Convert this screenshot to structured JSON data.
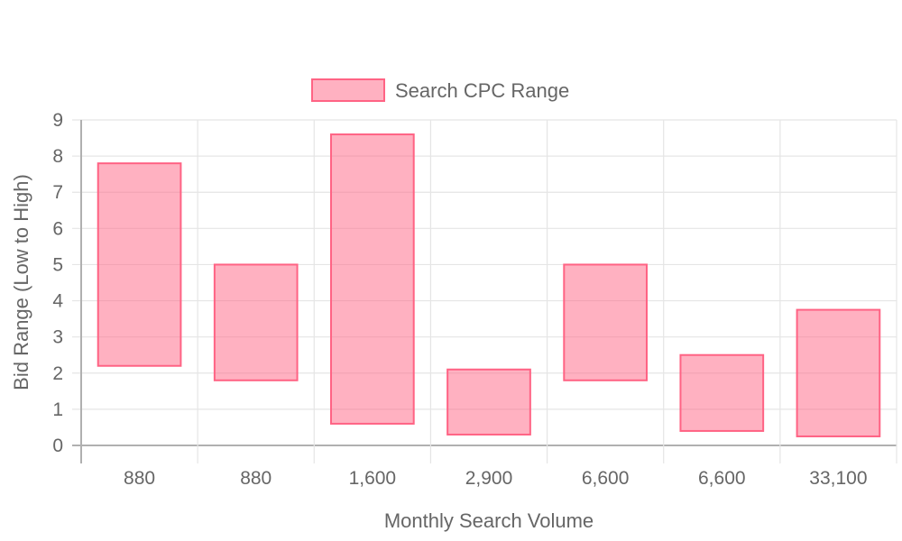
{
  "chart_data": {
    "type": "bar",
    "subtype": "floating-range",
    "categories": [
      "880",
      "880",
      "1,600",
      "2,900",
      "6,600",
      "6,600",
      "33,100"
    ],
    "series": [
      {
        "name": "Search CPC Range",
        "ranges": [
          [
            2.2,
            7.8
          ],
          [
            1.8,
            5.0
          ],
          [
            0.6,
            8.6
          ],
          [
            0.3,
            2.1
          ],
          [
            1.8,
            5.0
          ],
          [
            0.4,
            2.5
          ],
          [
            0.25,
            3.75
          ]
        ]
      }
    ],
    "xlabel": "Monthly Search Volume",
    "ylabel": "Bid Range (Low to High)",
    "ylim": [
      0,
      9
    ],
    "yticks": [
      "0",
      "1",
      "2",
      "3",
      "4",
      "5",
      "6",
      "7",
      "8",
      "9"
    ],
    "grid": true,
    "legend_position": "top"
  },
  "colors": {
    "bar_fill": "rgba(255,99,132,0.5)",
    "bar_stroke": "#ff6384",
    "grid": "#e5e5e5",
    "axis": "#b0b0b0",
    "text": "#666666"
  }
}
